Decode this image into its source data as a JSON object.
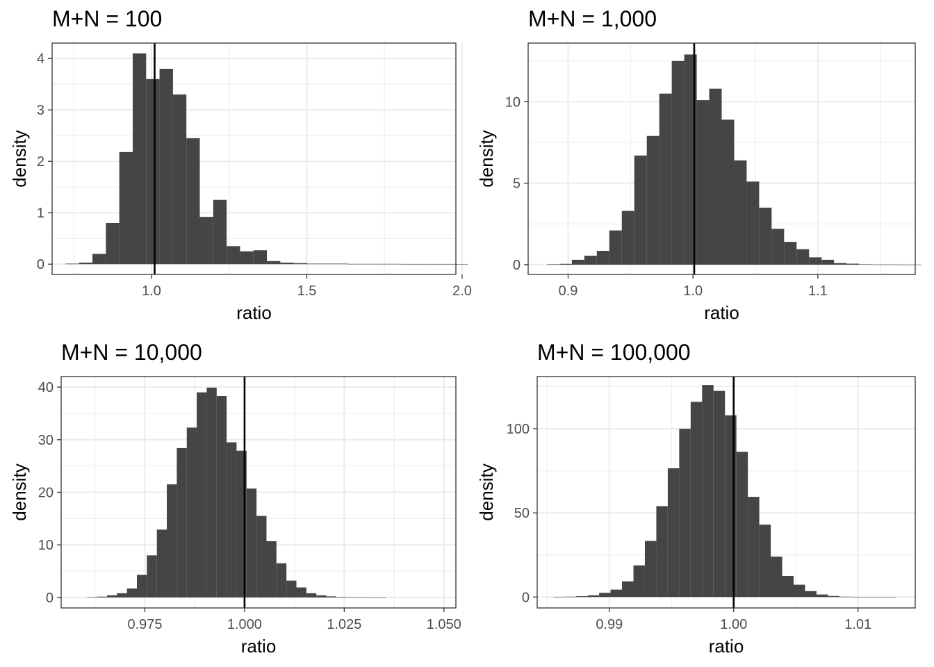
{
  "charts": [
    {
      "type": "histogram",
      "title": "M+N = 100",
      "xlabel": "ratio",
      "ylabel": "density",
      "xlim": [
        0.68,
        1.98
      ],
      "ylim": [
        -0.2,
        4.3
      ],
      "x_ticks": [
        {
          "value": 1.0,
          "label": "1.0"
        },
        {
          "value": 1.5,
          "label": "1.5"
        },
        {
          "value": 2.0,
          "label": "2.0"
        }
      ],
      "y_ticks": [
        {
          "value": 0,
          "label": "0"
        },
        {
          "value": 1,
          "label": "1"
        },
        {
          "value": 2,
          "label": "2"
        },
        {
          "value": 3,
          "label": "3"
        },
        {
          "value": 4,
          "label": "4"
        }
      ],
      "bin_start": 0.7235,
      "bin_width": 0.0432,
      "values": [
        0.01,
        0.03,
        0.2,
        0.8,
        2.18,
        4.1,
        3.6,
        3.8,
        3.3,
        2.45,
        0.92,
        1.25,
        0.35,
        0.25,
        0.27,
        0.06,
        0.03,
        0.02,
        0.01,
        0.01,
        0.01,
        0.005,
        0.005,
        0.005,
        0.005,
        0.003,
        0.003,
        0.003,
        0.003,
        0.003
      ],
      "vline": 1.01,
      "grid": true,
      "legend": "none"
    },
    {
      "type": "histogram",
      "title": "M+N = 1,000",
      "xlabel": "ratio",
      "ylabel": "density",
      "xlim": [
        0.868,
        1.178
      ],
      "ylim": [
        -0.6,
        13.6
      ],
      "x_ticks": [
        {
          "value": 0.9,
          "label": "0.9"
        },
        {
          "value": 1.0,
          "label": "1.0"
        },
        {
          "value": 1.1,
          "label": "1.1"
        }
      ],
      "y_ticks": [
        {
          "value": 0,
          "label": "0"
        },
        {
          "value": 5,
          "label": "5"
        },
        {
          "value": 10,
          "label": "10"
        }
      ],
      "bin_start": 0.883,
      "bin_width": 0.01,
      "values": [
        0.02,
        0.05,
        0.3,
        0.55,
        0.85,
        2.1,
        3.3,
        6.7,
        7.9,
        10.5,
        12.5,
        12.9,
        10.1,
        10.8,
        8.9,
        6.4,
        5.1,
        3.5,
        2.2,
        1.4,
        0.95,
        0.45,
        0.3,
        0.1,
        0.06,
        0.02,
        0.01,
        0.01,
        0.005,
        0.005
      ],
      "vline": 1.001,
      "grid": true,
      "legend": "none"
    },
    {
      "type": "histogram",
      "title": "M+N = 10,000",
      "xlabel": "ratio",
      "ylabel": "density",
      "xlim": [
        0.954,
        1.053
      ],
      "ylim": [
        -2.0,
        42.0
      ],
      "x_ticks": [
        {
          "value": 0.975,
          "label": "0.975"
        },
        {
          "value": 1.0,
          "label": "1.000"
        },
        {
          "value": 1.025,
          "label": "1.025"
        },
        {
          "value": 1.05,
          "label": "1.050"
        }
      ],
      "y_ticks": [
        {
          "value": 0,
          "label": "0"
        },
        {
          "value": 10,
          "label": "10"
        },
        {
          "value": 20,
          "label": "20"
        },
        {
          "value": 30,
          "label": "30"
        },
        {
          "value": 40,
          "label": "40"
        }
      ],
      "bin_start": 0.9605,
      "bin_width": 0.0025,
      "values": [
        0.05,
        0.15,
        0.4,
        0.8,
        1.7,
        4.3,
        8.0,
        12.9,
        21.5,
        28.4,
        32.3,
        39.0,
        39.9,
        38.3,
        29.5,
        27.9,
        20.7,
        15.5,
        10.7,
        6.5,
        3.2,
        1.9,
        0.8,
        0.4,
        0.2,
        0.1,
        0.03,
        0.02,
        0.01,
        0.005
      ],
      "vline": 1.0,
      "grid": true,
      "legend": "none"
    },
    {
      "type": "histogram",
      "title": "M+N = 100,000",
      "xlabel": "ratio",
      "ylabel": "density",
      "xlim": [
        0.9842,
        1.0146
      ],
      "ylim": [
        -6.5,
        131.0
      ],
      "x_ticks": [
        {
          "value": 0.99,
          "label": "0.99"
        },
        {
          "value": 1.0,
          "label": "1.00"
        },
        {
          "value": 1.01,
          "label": "1.01"
        }
      ],
      "y_ticks": [
        {
          "value": 0,
          "label": "0"
        },
        {
          "value": 50,
          "label": "50"
        },
        {
          "value": 100,
          "label": "100"
        }
      ],
      "bin_start": 0.9855,
      "bin_width": 0.00092,
      "values": [
        0.05,
        0.2,
        0.5,
        1.0,
        2.5,
        4.4,
        9.3,
        18.8,
        33.3,
        54.0,
        76.5,
        100.0,
        116.0,
        126.0,
        122.5,
        108.0,
        86.3,
        59.5,
        43.0,
        24.0,
        12.5,
        7.3,
        3.5,
        1.5,
        0.6,
        0.2,
        0.07,
        0.03,
        0.01,
        0.005
      ],
      "vline": 1.0,
      "grid": true,
      "legend": "none"
    }
  ]
}
